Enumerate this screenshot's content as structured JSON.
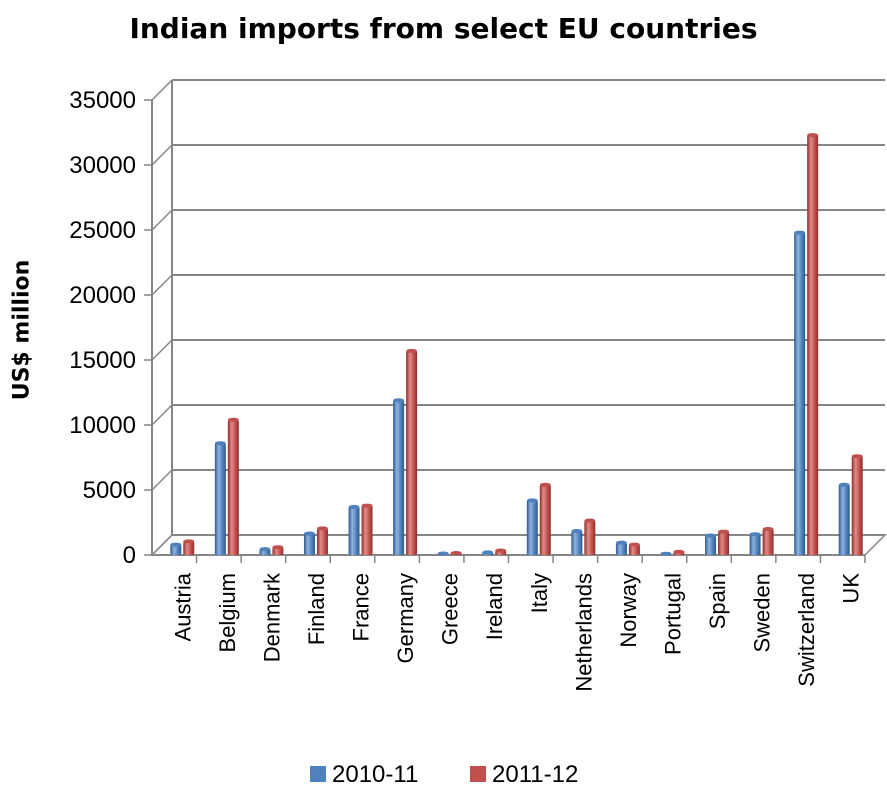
{
  "chart_data": {
    "type": "bar",
    "title": "Indian imports from select EU countries",
    "xlabel": "",
    "ylabel": "US$ million",
    "ylim": [
      0,
      35000
    ],
    "yticks": [
      0,
      5000,
      10000,
      15000,
      20000,
      25000,
      30000,
      35000
    ],
    "grid": true,
    "legend_position": "bottom",
    "categories": [
      "Austria",
      "Belgium",
      "Denmark",
      "Finland",
      "France",
      "Germany",
      "Greece",
      "Ireland",
      "Italy",
      "Netherlands",
      "Norway",
      "Portugal",
      "Spain",
      "Sweden",
      "Switzerland",
      "UK"
    ],
    "series": [
      {
        "name": "2010-11",
        "color": "#4F81BD",
        "values": [
          800,
          8600,
          450,
          1650,
          3700,
          11900,
          120,
          200,
          4200,
          1850,
          950,
          100,
          1500,
          1600,
          24800,
          5400
        ]
      },
      {
        "name": "2011-12",
        "color": "#C0504D",
        "values": [
          1050,
          10400,
          600,
          2050,
          3800,
          15700,
          150,
          350,
          5400,
          2650,
          800,
          250,
          1800,
          2000,
          32300,
          7600
        ]
      }
    ]
  }
}
